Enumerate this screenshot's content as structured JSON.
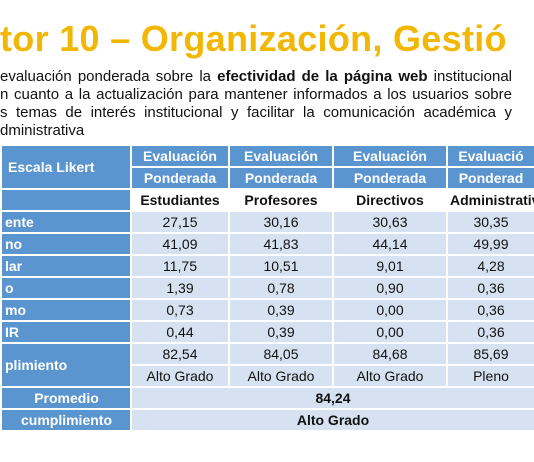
{
  "title": "tor 10 – Organización, Gestió",
  "intro": {
    "lines": [
      [
        {
          "text": "evaluación ponderada sobre la "
        },
        {
          "text": "efectividad de la página web",
          "bold": true
        },
        {
          "text": " institucional"
        }
      ],
      [
        {
          "text": "n cuanto a la actualización para mantener informados a los usuarios sobre"
        }
      ],
      [
        {
          "text": "s temas de interés institucional y facilitar la comunicación académica y"
        }
      ],
      [
        {
          "text": "dministrativa"
        }
      ]
    ]
  },
  "table": {
    "scale_header": "Escala Likert",
    "columns": [
      {
        "line1": "Evaluación",
        "line2": "Ponderada",
        "group": "Estudiantes"
      },
      {
        "line1": "Evaluación",
        "line2": "Ponderada",
        "group": "Profesores"
      },
      {
        "line1": "Evaluación",
        "line2": "Ponderada",
        "group": "Directivos"
      },
      {
        "line1": "Evaluació",
        "line2": "Ponderad",
        "group": "Administrativ"
      }
    ],
    "rows": [
      {
        "label": "ente",
        "values": [
          "27,15",
          "30,16",
          "30,63",
          "30,35"
        ]
      },
      {
        "label": "no",
        "values": [
          "41,09",
          "41,83",
          "44,14",
          "49,99"
        ]
      },
      {
        "label": "lar",
        "values": [
          "11,75",
          "10,51",
          "9,01",
          "4,28"
        ]
      },
      {
        "label": "o",
        "values": [
          "1,39",
          "0,78",
          "0,90",
          "0,36"
        ]
      },
      {
        "label": "mo",
        "values": [
          "0,73",
          "0,39",
          "0,00",
          "0,36"
        ]
      },
      {
        "label": "IR",
        "values": [
          "0,44",
          "0,39",
          "0,00",
          "0,36"
        ]
      }
    ],
    "compliance": {
      "label": "plimiento",
      "values": [
        "82,54",
        "84,05",
        "84,68",
        "85,69"
      ],
      "grades": [
        "Alto Grado",
        "Alto Grado",
        "Alto Grado",
        "Pleno"
      ]
    },
    "average": {
      "label_lines": [
        "Promedio",
        "cumplimiento"
      ],
      "value": "84,24",
      "grade": "Alto Grado"
    }
  }
}
